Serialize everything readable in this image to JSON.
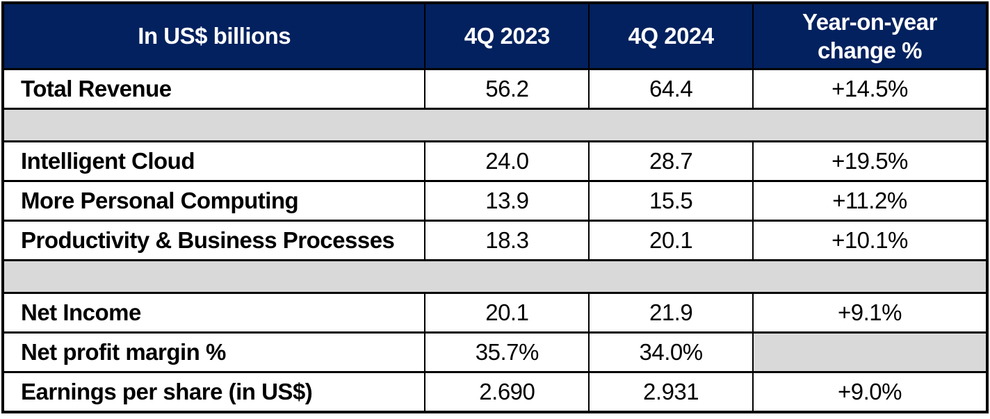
{
  "colors": {
    "header_bg": "#02215E",
    "header_text": "#FFFFFF",
    "spacer_bg": "#D9D9D9",
    "border": "#000000",
    "body_text": "#000000"
  },
  "table": {
    "header": {
      "label": "In US$ billions",
      "q1": "4Q 2023",
      "q2": "4Q 2024",
      "yoy_line1": "Year-on-year",
      "yoy_line2": "change %"
    },
    "rows": [
      {
        "label": "Total Revenue",
        "q1": "56.2",
        "q2": "64.4",
        "yoy": "+14.5%"
      },
      {
        "label": "Intelligent Cloud",
        "q1": "24.0",
        "q2": "28.7",
        "yoy": "+19.5%"
      },
      {
        "label": "More Personal Computing",
        "q1": "13.9",
        "q2": "15.5",
        "yoy": "+11.2%"
      },
      {
        "label": "Productivity & Business Processes",
        "q1": "18.3",
        "q2": "20.1",
        "yoy": "+10.1%"
      },
      {
        "label": "Net Income",
        "q1": "20.1",
        "q2": "21.9",
        "yoy": "+9.1%"
      },
      {
        "label": "Net profit margin %",
        "q1": "35.7%",
        "q2": "34.0%",
        "yoy": ""
      },
      {
        "label": "Earnings per share (in US$)",
        "q1": "2.690",
        "q2": "2.931",
        "yoy": "+9.0%"
      }
    ]
  },
  "chart_data": {
    "type": "table",
    "title": "In US$ billions",
    "columns": [
      "In US$ billions",
      "4Q 2023",
      "4Q 2024",
      "Year-on-year change %"
    ],
    "rows": [
      [
        "Total Revenue",
        56.2,
        64.4,
        "+14.5%"
      ],
      [
        "Intelligent Cloud",
        24.0,
        28.7,
        "+19.5%"
      ],
      [
        "More Personal Computing",
        13.9,
        15.5,
        "+11.2%"
      ],
      [
        "Productivity & Business Processes",
        18.3,
        20.1,
        "+10.1%"
      ],
      [
        "Net Income",
        20.1,
        21.9,
        "+9.1%"
      ],
      [
        "Net profit margin %",
        "35.7%",
        "34.0%",
        null
      ],
      [
        "Earnings per share (in US$)",
        2.69,
        2.931,
        "+9.0%"
      ]
    ],
    "layout": {
      "header_style": "navy background, white bold text",
      "spacer_bands": "full-width gray rows after row 1 and row 4",
      "empty_cell": "Net profit margin % year-on-year cell is gray/blank"
    }
  }
}
